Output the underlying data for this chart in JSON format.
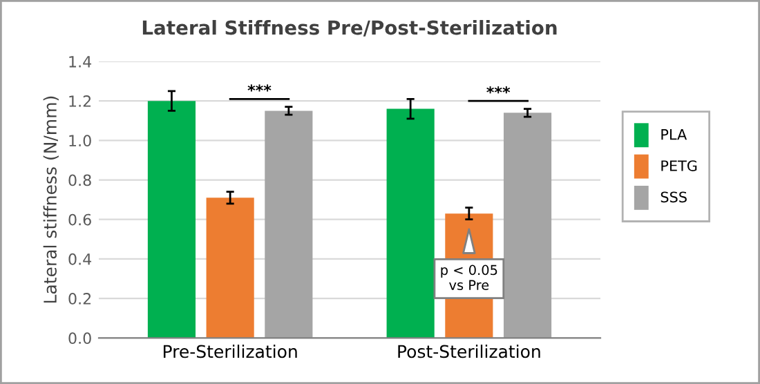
{
  "chart_data": {
    "type": "bar",
    "title": "Lateral Stiffness Pre/Post-Sterilization",
    "ylabel": "Lateral stiffness (N/mm)",
    "categories": [
      "Pre-Sterilization",
      "Post-Sterilization"
    ],
    "series": [
      {
        "name": "PLA",
        "color": "#00b050",
        "values": [
          1.2,
          1.16
        ],
        "errors": [
          0.05,
          0.05
        ]
      },
      {
        "name": "PETG",
        "color": "#ed7d31",
        "values": [
          0.71,
          0.63
        ],
        "errors": [
          0.03,
          0.03
        ]
      },
      {
        "name": "SSS",
        "color": "#a5a5a5",
        "values": [
          1.15,
          1.14
        ],
        "errors": [
          0.02,
          0.02
        ]
      }
    ],
    "ylim": [
      0,
      1.4
    ],
    "yticks": [
      {
        "value": 0,
        "label": "0.0"
      },
      0.2,
      0.4,
      0.6,
      0.8,
      {
        "value": 1,
        "label": "1.0"
      },
      1.2,
      1.4
    ],
    "grid": "y",
    "legend": "right",
    "annotations": [
      "***",
      "***",
      "p < 0.05\nvs Pre"
    ]
  }
}
